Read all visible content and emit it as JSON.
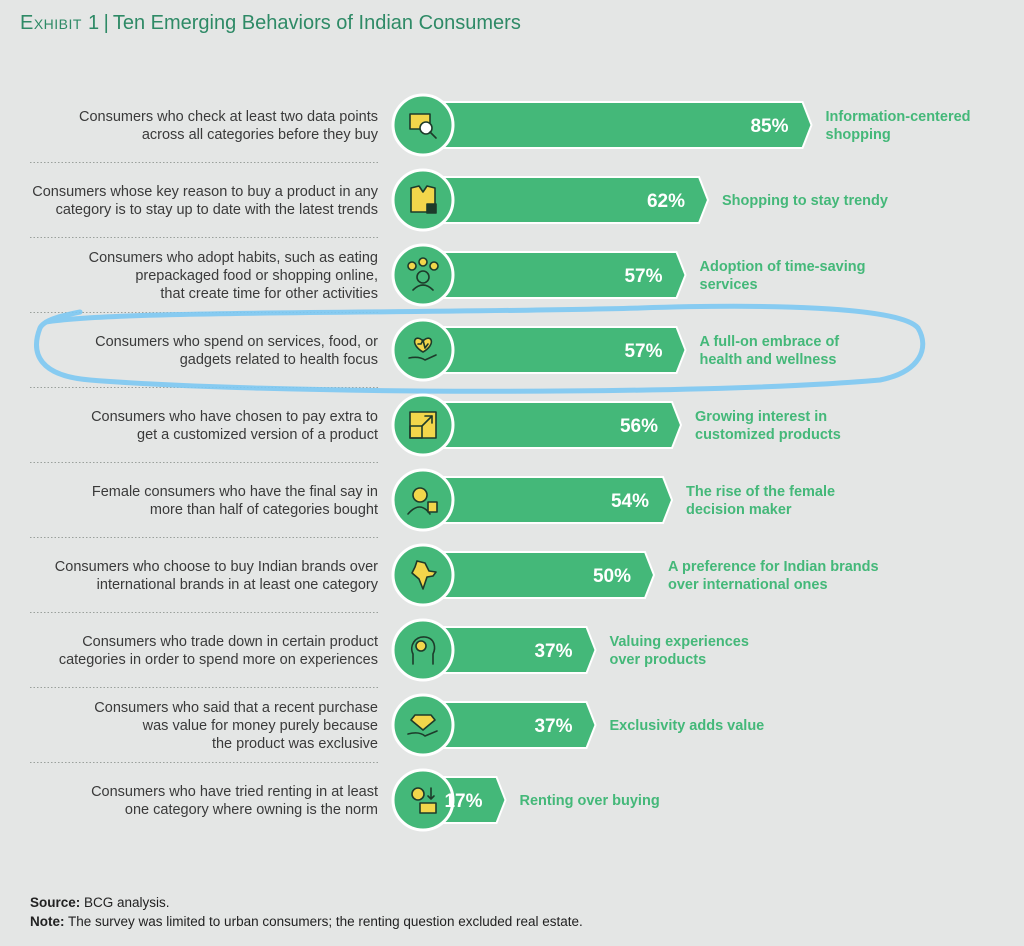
{
  "title": {
    "exhibit": "Exhibit 1",
    "separator": "|",
    "text": "Ten Emerging Behaviors of Indian Consumers"
  },
  "colors": {
    "bar": "#44b879",
    "bar_edge": "#ffffff",
    "tag": "#44b879",
    "icon_bg": "#44b879",
    "highlight": "#7cc8f2"
  },
  "chart_data": {
    "type": "bar",
    "orientation": "horizontal",
    "xlim": [
      0,
      100
    ],
    "unit": "%",
    "rows": [
      {
        "description": [
          "Consumers who check at least two data points",
          "across all categories before they buy"
        ],
        "value": 85,
        "label": "85%",
        "tag": [
          "Information-centered",
          "shopping"
        ],
        "icon": "magnifier-screen-icon",
        "highlighted": false
      },
      {
        "description": [
          "Consumers whose key reason to buy a product in any",
          "category is to stay up to date with the latest trends"
        ],
        "value": 62,
        "label": "62%",
        "tag": [
          "Shopping to stay trendy"
        ],
        "icon": "jacket-icon",
        "highlighted": false
      },
      {
        "description": [
          "Consumers who adopt habits, such as eating",
          "prepackaged food or shopping online,",
          "that create time for other activities"
        ],
        "value": 57,
        "label": "57%",
        "tag": [
          "Adoption of time-saving",
          "services"
        ],
        "icon": "person-options-icon",
        "highlighted": false
      },
      {
        "description": [
          "Consumers who spend on services, food, or",
          "gadgets related to health focus"
        ],
        "value": 57,
        "label": "57%",
        "tag": [
          "A full-on embrace of",
          "health and wellness"
        ],
        "icon": "heart-hand-icon",
        "highlighted": true
      },
      {
        "description": [
          "Consumers who have chosen to pay extra to",
          "get a customized version of a product"
        ],
        "value": 56,
        "label": "56%",
        "tag": [
          "Growing interest in",
          "customized products"
        ],
        "icon": "resize-box-icon",
        "highlighted": false
      },
      {
        "description": [
          "Female consumers who have the final say in",
          "more than half of categories bought"
        ],
        "value": 54,
        "label": "54%",
        "tag": [
          "The rise of the female",
          "decision maker"
        ],
        "icon": "woman-bag-icon",
        "highlighted": false
      },
      {
        "description": [
          "Consumers who choose to buy Indian brands over",
          "international brands in at least one category"
        ],
        "value": 50,
        "label": "50%",
        "tag": [
          "A preference for Indian brands",
          "over international ones"
        ],
        "icon": "india-map-icon",
        "highlighted": false
      },
      {
        "description": [
          "Consumers who trade down in certain product",
          "categories in order to spend more on experiences"
        ],
        "value": 37,
        "label": "37%",
        "tag": [
          "Valuing experiences",
          "over products"
        ],
        "icon": "head-gears-icon",
        "highlighted": false
      },
      {
        "description": [
          "Consumers who said that a recent purchase",
          "was value for money purely because",
          "the product was exclusive"
        ],
        "value": 37,
        "label": "37%",
        "tag": [
          "Exclusivity adds value"
        ],
        "icon": "diamond-hand-icon",
        "highlighted": false
      },
      {
        "description": [
          "Consumers who have tried renting in at least",
          "one category where owning is the norm"
        ],
        "value": 17,
        "label": "17%",
        "tag": [
          "Renting over buying"
        ],
        "icon": "gear-money-icon",
        "highlighted": false
      }
    ]
  },
  "notes": {
    "source_label": "Source:",
    "source_text": " BCG analysis.",
    "note_label": "Note:",
    "note_text": " The survey was limited to urban consumers; the renting question excluded real estate."
  }
}
